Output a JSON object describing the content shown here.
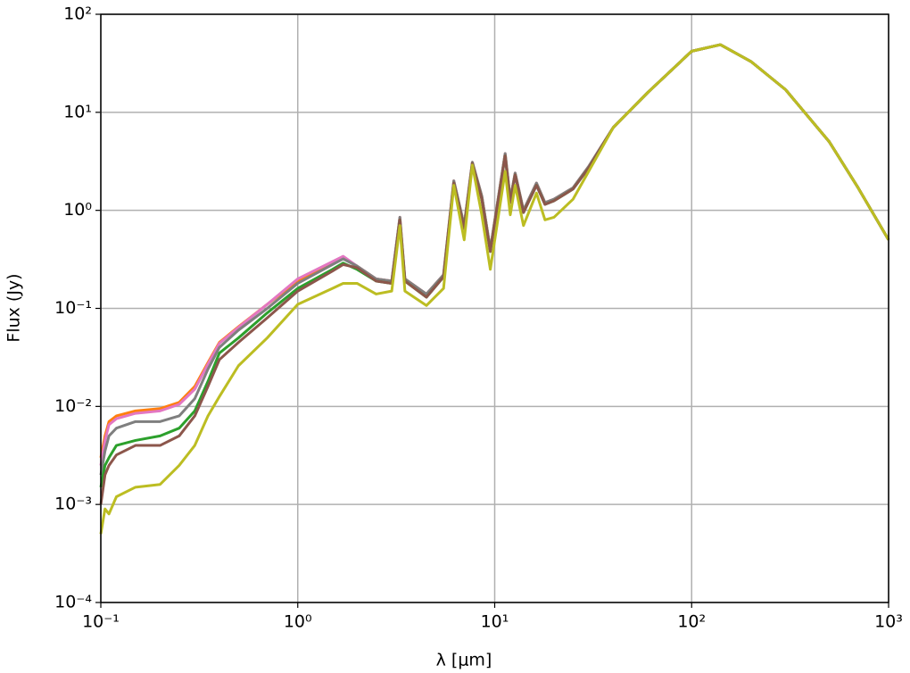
{
  "chart_data": {
    "type": "line",
    "xlabel": "λ [μm]",
    "ylabel": "Flux (Jy)",
    "xscale": "log",
    "yscale": "log",
    "grid": true,
    "xlim": [
      0.1,
      1000
    ],
    "ylim": [
      0.0001,
      100
    ],
    "xticks": [
      {
        "value": 0.1,
        "label": "10⁻¹"
      },
      {
        "value": 1,
        "label": "10⁰"
      },
      {
        "value": 10,
        "label": "10¹"
      },
      {
        "value": 100,
        "label": "10²"
      },
      {
        "value": 1000,
        "label": "10³"
      }
    ],
    "yticks": [
      {
        "value": 0.0001,
        "label": "10⁻⁴"
      },
      {
        "value": 0.001,
        "label": "10⁻³"
      },
      {
        "value": 0.01,
        "label": "10⁻²"
      },
      {
        "value": 0.1,
        "label": "10⁻¹"
      },
      {
        "value": 1,
        "label": "10⁰"
      },
      {
        "value": 10,
        "label": "10¹"
      },
      {
        "value": 100,
        "label": "10²"
      }
    ],
    "x": [
      0.1,
      0.105,
      0.11,
      0.12,
      0.15,
      0.2,
      0.25,
      0.3,
      0.35,
      0.4,
      0.5,
      0.7,
      1,
      1.5,
      1.7,
      2,
      2.5,
      3,
      3.3,
      3.5,
      4.5,
      5.5,
      6.2,
      7,
      7.7,
      8.6,
      9.5,
      11.3,
      12,
      12.7,
      14,
      16.3,
      18,
      20,
      25,
      30,
      40,
      60,
      100,
      140,
      200,
      300,
      500,
      700,
      1000
    ],
    "series": [
      {
        "color": "#ff7f0e",
        "values": [
          0.003,
          0.005,
          0.007,
          0.008,
          0.009,
          0.0095,
          0.011,
          0.016,
          0.028,
          0.045,
          0.065,
          0.11,
          0.19,
          0.29,
          0.33,
          0.27,
          0.2,
          0.19,
          0.85,
          0.2,
          0.14,
          0.22,
          2.0,
          0.7,
          3.1,
          1.4,
          0.4,
          3.8,
          1.3,
          2.4,
          1.0,
          1.9,
          1.2,
          1.3,
          1.7,
          2.8,
          7,
          16,
          42,
          49,
          33,
          17,
          5,
          1.7,
          0.5
        ]
      },
      {
        "color": "#e377c2",
        "values": [
          0.0025,
          0.0045,
          0.0065,
          0.0075,
          0.0085,
          0.009,
          0.0105,
          0.015,
          0.027,
          0.044,
          0.064,
          0.11,
          0.2,
          0.3,
          0.34,
          0.27,
          0.2,
          0.19,
          0.85,
          0.2,
          0.14,
          0.22,
          2.0,
          0.7,
          3.1,
          1.4,
          0.4,
          3.8,
          1.3,
          2.4,
          1.0,
          1.9,
          1.2,
          1.3,
          1.7,
          2.8,
          7,
          16,
          42,
          49,
          33,
          17,
          5,
          1.7,
          0.5
        ]
      },
      {
        "color": "#7f7f7f",
        "values": [
          0.002,
          0.0035,
          0.005,
          0.006,
          0.007,
          0.007,
          0.008,
          0.012,
          0.024,
          0.04,
          0.06,
          0.1,
          0.18,
          0.28,
          0.32,
          0.27,
          0.2,
          0.19,
          0.85,
          0.2,
          0.14,
          0.22,
          2.0,
          0.7,
          3.1,
          1.4,
          0.4,
          3.8,
          1.3,
          2.4,
          1.0,
          1.9,
          1.2,
          1.3,
          1.7,
          2.8,
          7,
          16,
          42,
          49,
          33,
          17,
          5,
          1.7,
          0.5
        ]
      },
      {
        "color": "#2ca02c",
        "values": [
          0.0015,
          0.0025,
          0.003,
          0.004,
          0.0045,
          0.005,
          0.006,
          0.009,
          0.018,
          0.035,
          0.05,
          0.09,
          0.16,
          0.25,
          0.29,
          0.25,
          0.19,
          0.18,
          0.8,
          0.19,
          0.13,
          0.21,
          1.9,
          0.65,
          3.0,
          1.3,
          0.38,
          3.6,
          1.2,
          2.3,
          0.95,
          1.8,
          1.15,
          1.25,
          1.65,
          2.7,
          7,
          16,
          42,
          49,
          33,
          17,
          5,
          1.7,
          0.5
        ]
      },
      {
        "color": "#8c564b",
        "values": [
          0.001,
          0.002,
          0.0025,
          0.0032,
          0.004,
          0.004,
          0.005,
          0.008,
          0.016,
          0.03,
          0.045,
          0.08,
          0.15,
          0.24,
          0.28,
          0.26,
          0.19,
          0.18,
          0.8,
          0.19,
          0.13,
          0.21,
          1.9,
          0.65,
          3.0,
          1.3,
          0.38,
          3.6,
          1.2,
          2.3,
          0.95,
          1.8,
          1.15,
          1.25,
          1.65,
          2.7,
          7,
          16,
          42,
          49,
          33,
          17,
          5,
          1.7,
          0.5
        ]
      },
      {
        "color": "#bcbd22",
        "values": [
          0.0005,
          0.0009,
          0.0008,
          0.0012,
          0.0015,
          0.0016,
          0.0025,
          0.004,
          0.008,
          0.0126,
          0.026,
          0.05,
          0.11,
          0.16,
          0.18,
          0.18,
          0.14,
          0.15,
          0.7,
          0.15,
          0.107,
          0.16,
          1.8,
          0.5,
          2.9,
          0.9,
          0.25,
          2.5,
          0.9,
          1.8,
          0.7,
          1.5,
          0.8,
          0.85,
          1.3,
          2.5,
          7,
          16,
          42,
          49,
          33,
          17,
          5,
          1.7,
          0.5
        ]
      }
    ]
  }
}
